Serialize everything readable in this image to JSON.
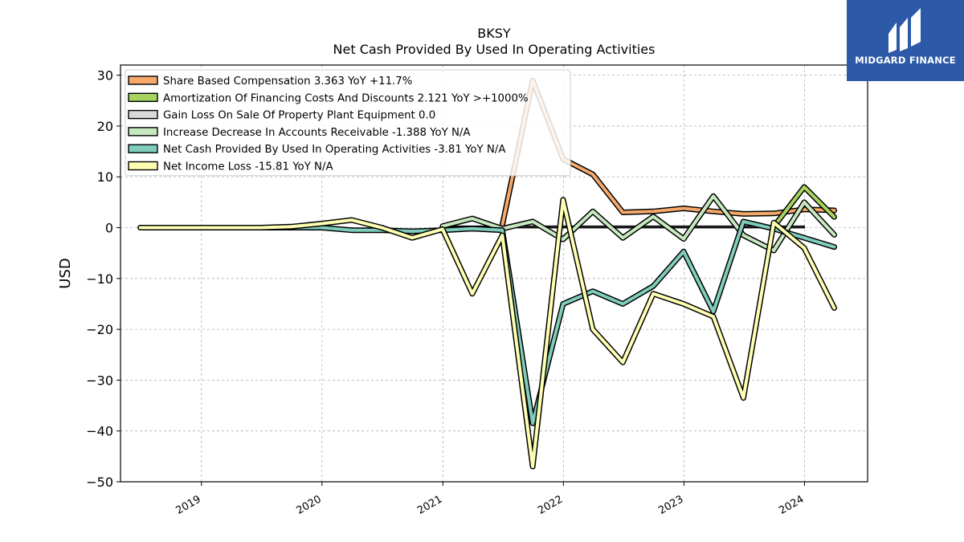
{
  "header": {
    "ticker": "BKSY",
    "subtitle": "Net Cash Provided By Used In Operating Activities"
  },
  "logo": {
    "text": "MIDGARD FINANCE",
    "color": "#2c5aa8"
  },
  "chart_data": {
    "type": "line",
    "ylabel": "USD",
    "xlabel": "",
    "ylim": [
      -50,
      32
    ],
    "xlim": [
      "2018-05-01",
      "2024-07-10"
    ],
    "yticks": [
      30,
      20,
      10,
      0,
      -10,
      -20,
      -30,
      -40,
      -50
    ],
    "ytick_labels": [
      "30",
      "20",
      "10",
      "0",
      "−10",
      "−20",
      "−30",
      "−40",
      "−50"
    ],
    "xticks": [
      "2019-01-01",
      "2020-01-01",
      "2021-01-01",
      "2022-01-01",
      "2023-01-01",
      "2024-01-01"
    ],
    "xtick_labels": [
      "2019",
      "2020",
      "2021",
      "2022",
      "2023",
      "2024"
    ],
    "grid": true,
    "legend_position": "top-left",
    "series": [
      {
        "name": "Share Based Compensation",
        "legend_text": "Share Based Compensation  3.363 YoY +11.7%",
        "color": "#f5a86a",
        "points": [
          [
            "2021-06-30",
            0.5
          ],
          [
            "2021-09-30",
            29
          ],
          [
            "2021-12-31",
            13.5
          ],
          [
            "2022-03-31",
            10.5
          ],
          [
            "2022-06-30",
            3
          ],
          [
            "2022-09-30",
            3.2
          ],
          [
            "2022-12-31",
            3.8
          ],
          [
            "2023-03-31",
            3.2
          ],
          [
            "2023-06-30",
            2.7
          ],
          [
            "2023-09-30",
            2.8
          ],
          [
            "2023-12-31",
            3.6
          ],
          [
            "2024-03-31",
            3.4
          ]
        ]
      },
      {
        "name": "Amortization Of Financing Costs And Discounts",
        "legend_text": "Amortization Of Financing Costs And Discounts  2.121 YoY >+1000%",
        "color": "#a6d45e",
        "points": [
          [
            "2023-09-30",
            0.2
          ],
          [
            "2023-12-31",
            8
          ],
          [
            "2024-03-31",
            2.1
          ]
        ]
      },
      {
        "name": "Gain Loss On Sale Of Property Plant Equipment",
        "legend_text": "Gain Loss On Sale Of Property Plant Equipment  0.0",
        "color": "#d9d9d9",
        "bar": true,
        "points": [
          [
            "2020-12-31",
            0.3
          ],
          [
            "2023-12-31",
            0
          ]
        ]
      },
      {
        "name": "Increase Decrease In Accounts Receivable",
        "legend_text": "Increase Decrease In Accounts Receivable  -1.388 YoY N/A",
        "color": "#c7e9c0",
        "points": [
          [
            "2020-12-31",
            0.3
          ],
          [
            "2021-03-31",
            1.8
          ],
          [
            "2021-06-30",
            -0.2
          ],
          [
            "2021-09-30",
            1.2
          ],
          [
            "2021-12-31",
            -2.3
          ],
          [
            "2022-03-31",
            3.2
          ],
          [
            "2022-06-30",
            -2
          ],
          [
            "2022-09-30",
            2.2
          ],
          [
            "2022-12-31",
            -2.2
          ],
          [
            "2023-03-31",
            6.2
          ],
          [
            "2023-06-30",
            -1.5
          ],
          [
            "2023-09-30",
            -4.5
          ],
          [
            "2023-12-31",
            5
          ],
          [
            "2024-03-31",
            -1.4
          ]
        ]
      },
      {
        "name": "Net Cash Provided By Used In Operating Activities",
        "legend_text": "Net Cash Provided By Used In Operating Activities  -3.81 YoY N/A",
        "color": "#7fcdbb",
        "points": [
          [
            "2018-06-30",
            0
          ],
          [
            "2019-06-30",
            0
          ],
          [
            "2019-12-31",
            0
          ],
          [
            "2020-03-31",
            -0.5
          ],
          [
            "2020-06-30",
            -0.5
          ],
          [
            "2020-09-30",
            -0.7
          ],
          [
            "2020-12-31",
            -0.5
          ],
          [
            "2021-03-31",
            -0.2
          ],
          [
            "2021-06-30",
            -0.5
          ],
          [
            "2021-09-30",
            -38.5
          ],
          [
            "2021-12-31",
            -15
          ],
          [
            "2022-03-31",
            -12.5
          ],
          [
            "2022-06-30",
            -15
          ],
          [
            "2022-09-30",
            -11.5
          ],
          [
            "2022-12-31",
            -4.7
          ],
          [
            "2023-03-31",
            -16.5
          ],
          [
            "2023-06-30",
            1.2
          ],
          [
            "2023-09-30",
            -0.2
          ],
          [
            "2023-12-31",
            -2
          ],
          [
            "2024-03-31",
            -3.8
          ]
        ]
      },
      {
        "name": "Net Income Loss",
        "legend_text": "Net Income Loss  -15.81 YoY N/A",
        "color": "#ffffb3",
        "points": [
          [
            "2018-06-30",
            0
          ],
          [
            "2018-12-31",
            0
          ],
          [
            "2019-06-30",
            0
          ],
          [
            "2019-09-30",
            0.2
          ],
          [
            "2019-12-31",
            0.8
          ],
          [
            "2020-03-31",
            1.5
          ],
          [
            "2020-06-30",
            0
          ],
          [
            "2020-09-30",
            -2
          ],
          [
            "2020-12-31",
            -0.3
          ],
          [
            "2021-03-31",
            -13
          ],
          [
            "2021-06-30",
            -1.5
          ],
          [
            "2021-09-30",
            -47
          ],
          [
            "2021-12-31",
            5.5
          ],
          [
            "2022-03-31",
            -20
          ],
          [
            "2022-06-30",
            -26.5
          ],
          [
            "2022-09-30",
            -13
          ],
          [
            "2022-12-31",
            -15
          ],
          [
            "2023-03-31",
            -17.5
          ],
          [
            "2023-06-30",
            -33.5
          ],
          [
            "2023-09-30",
            1
          ],
          [
            "2023-12-31",
            -4
          ],
          [
            "2024-03-31",
            -15.8
          ]
        ]
      }
    ]
  }
}
